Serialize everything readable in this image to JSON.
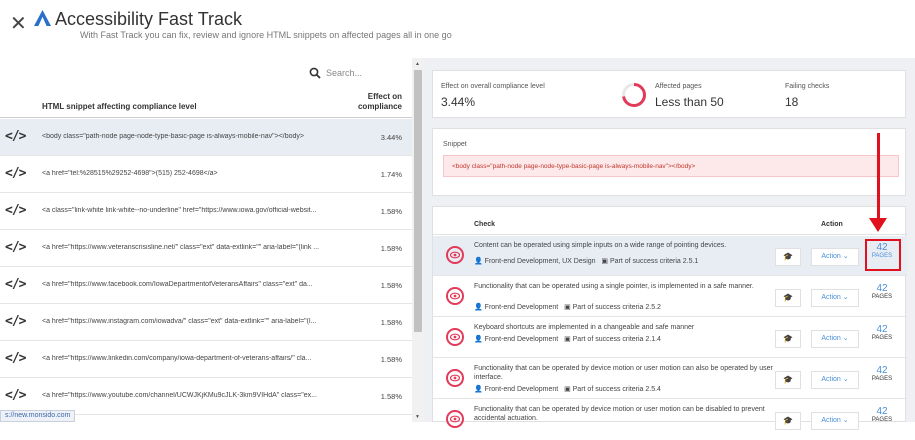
{
  "header": {
    "title": "Accessibility Fast Track",
    "subtitle": "With Fast Track you can fix, review and ignore HTML snippets on affected pages all in one go",
    "close": "✕"
  },
  "left_panel": {
    "search_placeholder": "Search...",
    "col_snippet": "HTML snippet affecting compliance level",
    "col_effect_line1": "Effect on",
    "col_effect_line2": "compliance",
    "rows": [
      {
        "icon": "</>",
        "snippet": "<body class=\"path-node page-node-type-basic-page is-always-mobile-nav\"></body>",
        "effect": "3.44%"
      },
      {
        "icon": "</>",
        "snippet": "<a href=\"tel:%28515%29252-4698\">(515) 252-4698</a>",
        "effect": "1.74%"
      },
      {
        "icon": "</>",
        "snippet": "<a class=\"link-white link-white--no-underline\" href=\"https://www.iowa.gov/official-websit...",
        "effect": "1.58%"
      },
      {
        "icon": "</>",
        "snippet": "<a href=\"https://www.veteranscrisisline.net/\" class=\"ext\" data-extlink=\"\" aria-label=\"(link ...",
        "effect": "1.58%"
      },
      {
        "icon": "</>",
        "snippet": "<a href=\"https://www.facebook.com/IowaDepartmentofVeteransAffairs\" class=\"ext\" da...",
        "effect": "1.58%"
      },
      {
        "icon": "</>",
        "snippet": "<a href=\"https://www.instagram.com/iowadva/\" class=\"ext\" data-extlink=\"\" aria-label=\"(l...",
        "effect": "1.58%"
      },
      {
        "icon": "</>",
        "snippet": "<a href=\"https://www.linkedin.com/company/iowa-department-of-veterans-affairs/\" cla...",
        "effect": "1.58%"
      },
      {
        "icon": "</>",
        "snippet": "<a href=\"https://www.youtube.com/channel/UCWJKjKMu9cJLK-3km9VIHdA\" class=\"ex...",
        "effect": "1.58%"
      }
    ],
    "status_url": "s://new.monsido.com"
  },
  "stats": {
    "effect_label": "Effect on overall compliance level",
    "effect_value": "3.44%",
    "affected_label": "Affected pages",
    "affected_value": "Less than 50",
    "failing_label": "Failing checks",
    "failing_value": "18"
  },
  "snippet": {
    "label": "Snippet",
    "code": "<body class=\"path-node page-node-type-basic-page is-always-mobile-nav\"></body>"
  },
  "checks": {
    "col_check": "Check",
    "col_action": "Action",
    "rows": [
      {
        "text": "Content can be operated using simple inputs on a wide range of pointing devices.",
        "meta1": "Front-end Development, UX Design",
        "meta2": "Part of success criteria 2.5.1",
        "action": "Action",
        "pages_count": "42",
        "pages_label": "PAGES"
      },
      {
        "text": "Functionality that can be operated using a single pointer, is implemented in a safe manner.",
        "meta1": "Front-end Development",
        "meta2": "Part of success criteria 2.5.2",
        "action": "Action",
        "pages_count": "42",
        "pages_label": "PAGES"
      },
      {
        "text": "Keyboard shortcuts are implemented in a changeable and safe manner",
        "meta1": "Front-end Development",
        "meta2": "Part of success criteria 2.1.4",
        "action": "Action",
        "pages_count": "42",
        "pages_label": "PAGES"
      },
      {
        "text": "Functionality that can be operated by device motion or user motion can also be operated by user interface.",
        "meta1": "Front-end Development",
        "meta2": "Part of success criteria 2.5.4",
        "action": "Action",
        "pages_count": "42",
        "pages_label": "PAGES"
      },
      {
        "text": "Functionality that can be operated by device motion or user motion can be disabled to prevent accidental actuation.",
        "meta1": "",
        "meta2": "",
        "action": "Action",
        "pages_count": "42",
        "pages_label": "PAGES"
      }
    ]
  },
  "colors": {
    "accent": "#4a90d9",
    "danger": "#e23b5a",
    "annotation": "#e0101e"
  }
}
